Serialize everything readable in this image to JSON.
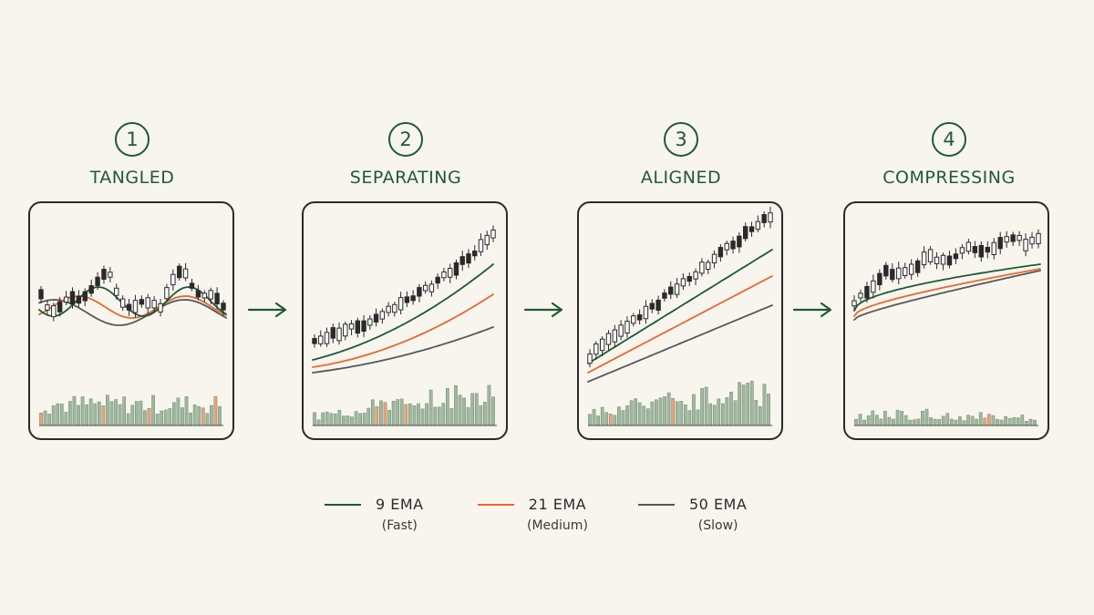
{
  "colors": {
    "background": "#f8f5ee",
    "accent": "#1f5a35",
    "ema_fast": "#1f5a35",
    "ema_medium": "#e8682c",
    "ema_slow": "#55575a",
    "candle_ink": "#2a2a2a",
    "volume_bar": "#9fb89f",
    "volume_bar_highlight": "#f0a07a"
  },
  "stages": [
    {
      "number": "1",
      "title": "TANGLED",
      "pattern": "tangled"
    },
    {
      "number": "2",
      "title": "SEPARATING",
      "pattern": "separating"
    },
    {
      "number": "3",
      "title": "ALIGNED",
      "pattern": "aligned"
    },
    {
      "number": "4",
      "title": "COMPRESSING",
      "pattern": "compressing"
    }
  ],
  "arrow_icon": "right-arrow-icon",
  "legend": [
    {
      "label": "9 EMA",
      "sublabel": "(Fast)",
      "color": "#1f5a35"
    },
    {
      "label": "21 EMA",
      "sublabel": "(Medium)",
      "color": "#e8682c"
    },
    {
      "label": "50 EMA",
      "sublabel": "(Slow)",
      "color": "#55575a"
    }
  ]
}
